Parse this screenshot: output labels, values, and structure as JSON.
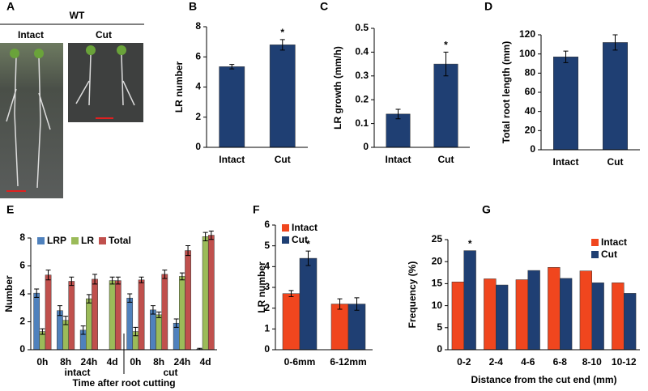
{
  "photo": {
    "panel": "A",
    "title": "WT",
    "labels": [
      "Intact",
      "Cut"
    ]
  },
  "chart_data": [
    {
      "type": "bar",
      "panel": "B",
      "y_label": "LR number",
      "categories": [
        "Intact",
        "Cut"
      ],
      "series": [
        {
          "color": "#1f3f73",
          "values": [
            5.35,
            6.8
          ],
          "errors": [
            0.15,
            0.35
          ],
          "stars": [
            null,
            "*"
          ]
        }
      ],
      "ylim": [
        0,
        8
      ],
      "yticks": [
        0,
        2,
        4,
        6,
        8
      ]
    },
    {
      "type": "bar",
      "panel": "C",
      "y_label": "LR growth (mm/h)",
      "categories": [
        "Intact",
        "Cut"
      ],
      "series": [
        {
          "color": "#1f3f73",
          "values": [
            0.14,
            0.35
          ],
          "errors": [
            0.02,
            0.05
          ],
          "stars": [
            null,
            "*"
          ]
        }
      ],
      "ylim": [
        0,
        0.5
      ],
      "yticks": [
        0,
        0.1,
        0.2,
        0.3,
        0.4,
        0.5
      ]
    },
    {
      "type": "bar",
      "panel": "D",
      "y_label": "Total root length (mm)",
      "categories": [
        "Intact",
        "Cut"
      ],
      "series": [
        {
          "color": "#1f3f73",
          "values": [
            97,
            112
          ],
          "errors": [
            6,
            8
          ]
        }
      ],
      "ylim": [
        0,
        120
      ],
      "yticks": [
        0,
        20,
        40,
        60,
        80,
        100,
        120
      ]
    },
    {
      "type": "bar",
      "panel": "E",
      "y_label": "Number",
      "x_label": "Time after root cutting",
      "categories": [
        "0h",
        "8h",
        "24h",
        "4d",
        "0h",
        "8h",
        "24h",
        "4d"
      ],
      "groups": [
        "intact",
        "cut"
      ],
      "series": [
        {
          "name": "LRP",
          "color": "#4f81bd",
          "values": [
            4.05,
            2.8,
            1.4,
            0,
            3.7,
            2.85,
            1.9,
            0.05
          ],
          "errors": [
            0.3,
            0.35,
            0.3,
            0,
            0.3,
            0.3,
            0.3,
            0.05
          ]
        },
        {
          "name": "LR",
          "color": "#9bbb59",
          "values": [
            1.3,
            2.1,
            3.65,
            4.95,
            1.3,
            2.5,
            5.25,
            8.1
          ],
          "errors": [
            0.2,
            0.3,
            0.3,
            0.25,
            0.3,
            0.2,
            0.25,
            0.3
          ]
        },
        {
          "name": "Total",
          "color": "#c0504d",
          "values": [
            5.35,
            4.9,
            5.05,
            4.95,
            5.0,
            5.4,
            7.1,
            8.2
          ],
          "errors": [
            0.35,
            0.3,
            0.35,
            0.25,
            0.2,
            0.3,
            0.35,
            0.3
          ]
        }
      ],
      "ylim": [
        0,
        8
      ],
      "yticks": [
        0,
        2,
        4,
        6,
        8
      ],
      "legend": "top-left"
    },
    {
      "type": "bar",
      "panel": "F",
      "y_label": "LR number",
      "categories": [
        "0-6mm",
        "6-12mm"
      ],
      "series": [
        {
          "name": "Intact",
          "color": "#f0461e",
          "values": [
            2.7,
            2.2
          ],
          "errors": [
            0.15,
            0.25
          ]
        },
        {
          "name": "Cut",
          "color": "#1f3f73",
          "values": [
            4.4,
            2.2
          ],
          "errors": [
            0.35,
            0.3
          ],
          "stars": [
            "*",
            null
          ]
        }
      ],
      "ylim": [
        0,
        6
      ],
      "yticks": [
        0,
        1,
        2,
        3,
        4,
        5,
        6
      ],
      "legend": "top-left"
    },
    {
      "type": "bar",
      "panel": "G",
      "y_label": "Frequency (%)",
      "x_label": "Distance from the cut end (mm)",
      "categories": [
        "0-2",
        "2-4",
        "4-6",
        "6-8",
        "8-10",
        "10-12"
      ],
      "series": [
        {
          "name": "Intact",
          "color": "#f0461e",
          "values": [
            15.4,
            16.1,
            15.9,
            18.7,
            17.9,
            15.2
          ]
        },
        {
          "name": "Cut",
          "color": "#1f3f73",
          "values": [
            22.5,
            14.7,
            18.0,
            16.2,
            15.2,
            12.8
          ],
          "stars": [
            "*",
            null,
            null,
            null,
            null,
            null
          ]
        }
      ],
      "ylim": [
        0,
        25
      ],
      "yticks": [
        0,
        5,
        10,
        15,
        20,
        25
      ],
      "legend": "top-right"
    }
  ]
}
